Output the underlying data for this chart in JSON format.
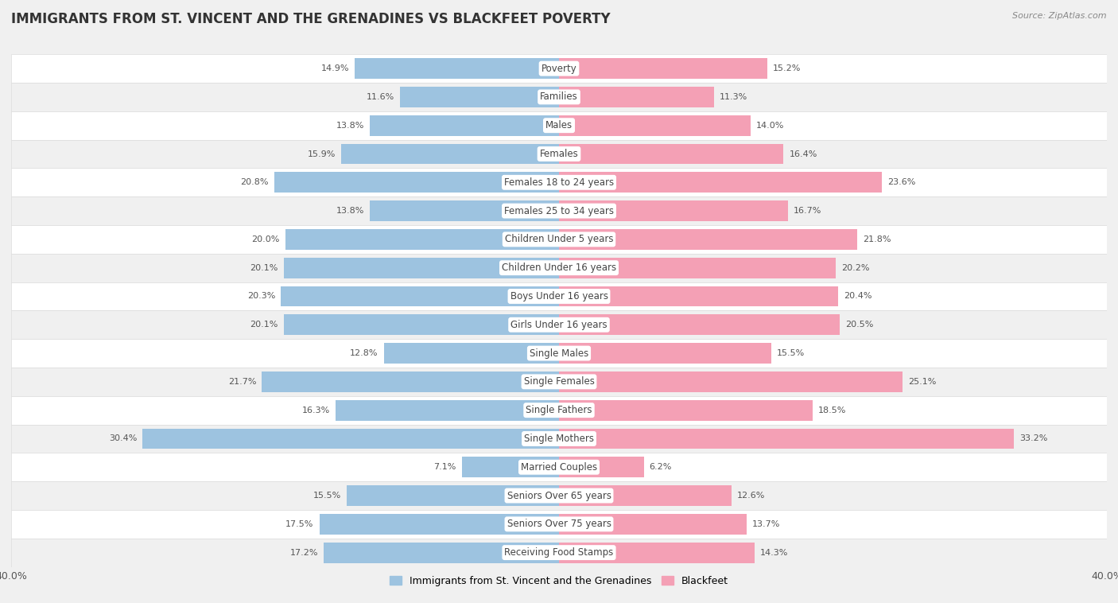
{
  "title": "IMMIGRANTS FROM ST. VINCENT AND THE GRENADINES VS BLACKFEET POVERTY",
  "source": "Source: ZipAtlas.com",
  "categories": [
    "Poverty",
    "Families",
    "Males",
    "Females",
    "Females 18 to 24 years",
    "Females 25 to 34 years",
    "Children Under 5 years",
    "Children Under 16 years",
    "Boys Under 16 years",
    "Girls Under 16 years",
    "Single Males",
    "Single Females",
    "Single Fathers",
    "Single Mothers",
    "Married Couples",
    "Seniors Over 65 years",
    "Seniors Over 75 years",
    "Receiving Food Stamps"
  ],
  "left_values": [
    14.9,
    11.6,
    13.8,
    15.9,
    20.8,
    13.8,
    20.0,
    20.1,
    20.3,
    20.1,
    12.8,
    21.7,
    16.3,
    30.4,
    7.1,
    15.5,
    17.5,
    17.2
  ],
  "right_values": [
    15.2,
    11.3,
    14.0,
    16.4,
    23.6,
    16.7,
    21.8,
    20.2,
    20.4,
    20.5,
    15.5,
    25.1,
    18.5,
    33.2,
    6.2,
    12.6,
    13.7,
    14.3
  ],
  "left_color": "#9DC3E0",
  "right_color": "#F4A0B5",
  "left_label": "Immigrants from St. Vincent and the Grenadines",
  "right_label": "Blackfeet",
  "axis_max": 40.0,
  "row_color_even": "#f0f0f0",
  "row_color_odd": "#fafafa",
  "title_fontsize": 12,
  "label_fontsize": 8.5,
  "value_fontsize": 8,
  "cat_fontsize": 8.5
}
